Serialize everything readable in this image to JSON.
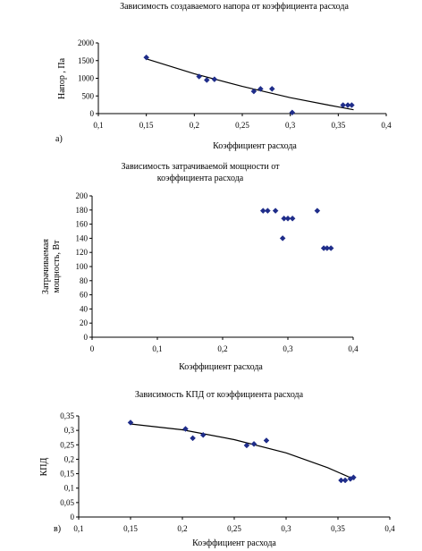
{
  "chart_data": [
    {
      "type": "scatter",
      "panel_label": "а)",
      "title": "Зависимость создаваемого напора от коэффициента расхода",
      "title_lines": [
        "Зависимость создаваемого напора от коэффициента расхода"
      ],
      "xlabel": "Коэффициент расхода",
      "ylabel": "Напор , Па",
      "ylabel_lines": [
        "Напор , Па"
      ],
      "xlim": [
        0.1,
        0.4
      ],
      "ylim": [
        0,
        2000
      ],
      "xticks": [
        0.1,
        0.15,
        0.2,
        0.25,
        0.3,
        0.35,
        0.4
      ],
      "xtick_labels": [
        "0,1",
        "0,15",
        "0,2",
        "0,25",
        "0,3",
        "0,35",
        "0,4"
      ],
      "yticks": [
        0,
        500,
        1000,
        1500,
        2000
      ],
      "ytick_labels": [
        "0",
        "500",
        "1000",
        "1500",
        "2000"
      ],
      "grid": false,
      "marker_color": "#1f2d8a",
      "points": [
        {
          "x": 0.15,
          "y": 1590
        },
        {
          "x": 0.205,
          "y": 1050
        },
        {
          "x": 0.213,
          "y": 950
        },
        {
          "x": 0.221,
          "y": 970
        },
        {
          "x": 0.262,
          "y": 630
        },
        {
          "x": 0.269,
          "y": 700
        },
        {
          "x": 0.281,
          "y": 700
        },
        {
          "x": 0.302,
          "y": 30
        },
        {
          "x": 0.355,
          "y": 240
        },
        {
          "x": 0.36,
          "y": 240
        },
        {
          "x": 0.364,
          "y": 240
        }
      ],
      "trend": [
        {
          "x": 0.15,
          "y": 1550
        },
        {
          "x": 0.2,
          "y": 1130
        },
        {
          "x": 0.25,
          "y": 770
        },
        {
          "x": 0.3,
          "y": 450
        },
        {
          "x": 0.34,
          "y": 240
        },
        {
          "x": 0.366,
          "y": 110
        }
      ]
    },
    {
      "type": "scatter",
      "panel_label": "",
      "title": "Зависимость затрачиваемой мощности от коэффициента расхода",
      "title_lines": [
        "Зависимость затрачиваемой мощности от",
        "коэффициента расхода"
      ],
      "xlabel": "Коэффициент расхода",
      "ylabel": "Затрачиваемая мощность, Вт",
      "ylabel_lines": [
        "Затрачиваемая",
        "мощность, Вт"
      ],
      "xlim": [
        0,
        0.4
      ],
      "ylim": [
        0,
        200
      ],
      "xticks": [
        0,
        0.1,
        0.2,
        0.3,
        0.4
      ],
      "xtick_labels": [
        "0",
        "0,1",
        "0,2",
        "0,3",
        "0,4"
      ],
      "yticks": [
        0,
        20,
        40,
        60,
        80,
        100,
        120,
        140,
        160,
        180,
        200
      ],
      "ytick_labels": [
        "0",
        "20",
        "40",
        "60",
        "80",
        "100",
        "120",
        "140",
        "160",
        "180",
        "200"
      ],
      "grid": false,
      "marker_color": "#1f2d8a",
      "points": [
        {
          "x": 0.262,
          "y": 179
        },
        {
          "x": 0.269,
          "y": 179
        },
        {
          "x": 0.281,
          "y": 179
        },
        {
          "x": 0.292,
          "y": 140
        },
        {
          "x": 0.294,
          "y": 168
        },
        {
          "x": 0.3,
          "y": 168
        },
        {
          "x": 0.307,
          "y": 168
        },
        {
          "x": 0.345,
          "y": 179
        },
        {
          "x": 0.355,
          "y": 126
        },
        {
          "x": 0.36,
          "y": 126
        },
        {
          "x": 0.366,
          "y": 126
        }
      ],
      "trend": []
    },
    {
      "type": "scatter",
      "panel_label": "в)",
      "title": "Зависимость КПД от коэффициента расхода",
      "title_lines": [
        "Зависимость КПД от коэффициента расхода"
      ],
      "xlabel": "Коэффициент расхода",
      "ylabel": "КПД",
      "ylabel_lines": [
        "КПД"
      ],
      "xlim": [
        0.1,
        0.4
      ],
      "ylim": [
        0,
        0.35
      ],
      "xticks": [
        0.1,
        0.15,
        0.2,
        0.25,
        0.3,
        0.35,
        0.4
      ],
      "xtick_labels": [
        "0,1",
        "0,15",
        "0,2",
        "0,25",
        "0,3",
        "0,35",
        "0,4"
      ],
      "yticks": [
        0,
        0.05,
        0.1,
        0.15,
        0.2,
        0.25,
        0.3,
        0.35
      ],
      "ytick_labels": [
        "0",
        "0,05",
        "0,1",
        "0,15",
        "0,2",
        "0,25",
        "0,3",
        "0,35"
      ],
      "grid": false,
      "marker_color": "#1f2d8a",
      "points": [
        {
          "x": 0.15,
          "y": 0.327
        },
        {
          "x": 0.203,
          "y": 0.305
        },
        {
          "x": 0.21,
          "y": 0.273
        },
        {
          "x": 0.22,
          "y": 0.284
        },
        {
          "x": 0.262,
          "y": 0.248
        },
        {
          "x": 0.269,
          "y": 0.253
        },
        {
          "x": 0.281,
          "y": 0.265
        },
        {
          "x": 0.353,
          "y": 0.127
        },
        {
          "x": 0.357,
          "y": 0.127
        },
        {
          "x": 0.362,
          "y": 0.132
        },
        {
          "x": 0.365,
          "y": 0.137
        }
      ],
      "trend": [
        {
          "x": 0.15,
          "y": 0.322
        },
        {
          "x": 0.2,
          "y": 0.302
        },
        {
          "x": 0.25,
          "y": 0.268
        },
        {
          "x": 0.3,
          "y": 0.222
        },
        {
          "x": 0.34,
          "y": 0.171
        },
        {
          "x": 0.366,
          "y": 0.13
        }
      ]
    }
  ]
}
